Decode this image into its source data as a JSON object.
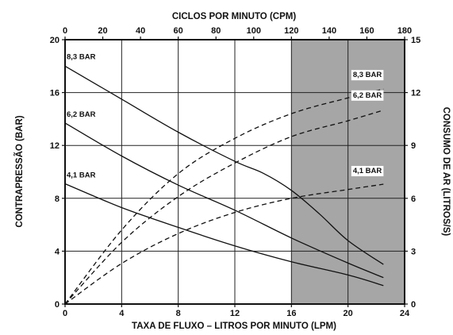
{
  "chart_data": {
    "type": "line",
    "title": "",
    "xlabel": "TAXA DE FLUXO – LITROS POR MINUTO (LPM)",
    "x2label": "CICLOS POR MINUTO (CPM)",
    "ylabel": "CONTRAPRESSÃO (BAR)",
    "y2label": "CONSUMO DE AR (LITROS/S)",
    "xlim": [
      0,
      24
    ],
    "x2lim": [
      0,
      180
    ],
    "ylim": [
      0,
      20
    ],
    "y2lim": [
      0,
      15
    ],
    "xticks": [
      "0",
      "4",
      "8",
      "12",
      "16",
      "20",
      "24"
    ],
    "x2ticks": [
      "0",
      "20",
      "40",
      "60",
      "80",
      "100",
      "120",
      "140",
      "160",
      "180"
    ],
    "yticks": [
      "0",
      "4",
      "8",
      "12",
      "16",
      "20"
    ],
    "y2ticks": [
      "0",
      "3",
      "6",
      "9",
      "12",
      "15"
    ],
    "grid": true,
    "shaded_region": {
      "x_from": 16,
      "x_to": 24,
      "color": "#a6a6a6"
    },
    "series": [
      {
        "name": "8,3 BAR",
        "style": "solid",
        "axis": "left",
        "x": [
          0,
          4,
          8,
          12,
          14,
          16,
          18,
          20,
          22.5
        ],
        "y": [
          18.0,
          15.5,
          13.0,
          10.8,
          9.9,
          8.6,
          6.8,
          4.8,
          3.0
        ]
      },
      {
        "name": "6,2 BAR",
        "style": "solid",
        "axis": "left",
        "x": [
          0,
          4,
          8,
          12,
          16,
          20,
          22.5
        ],
        "y": [
          13.7,
          11.2,
          9.0,
          7.1,
          5.0,
          3.1,
          2.0
        ]
      },
      {
        "name": "4,1 BAR",
        "style": "solid",
        "axis": "left",
        "x": [
          0,
          4,
          8,
          12,
          16,
          20,
          22.5
        ],
        "y": [
          9.1,
          7.3,
          5.8,
          4.4,
          3.2,
          2.2,
          1.4
        ]
      },
      {
        "name": "8,3 BAR",
        "style": "dashed",
        "axis": "right",
        "x": [
          0,
          4,
          8,
          12,
          16,
          20,
          22.5
        ],
        "y": [
          0,
          4.2,
          7.4,
          9.4,
          10.8,
          11.7,
          12.2
        ]
      },
      {
        "name": "6,2 BAR",
        "style": "dashed",
        "axis": "right",
        "x": [
          0,
          4,
          8,
          12,
          16,
          20,
          22.5
        ],
        "y": [
          0,
          3.5,
          6.1,
          8.0,
          9.5,
          10.4,
          11.0
        ]
      },
      {
        "name": "4,1 BAR",
        "style": "dashed",
        "axis": "right",
        "x": [
          0,
          4,
          8,
          12,
          16,
          20,
          22.5
        ],
        "y": [
          0,
          2.3,
          4.0,
          5.2,
          6.0,
          6.5,
          6.8
        ]
      }
    ]
  }
}
